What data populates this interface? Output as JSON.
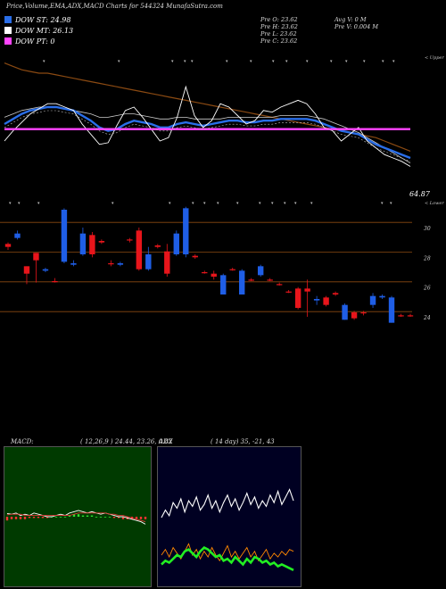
{
  "title": "Price,Volume,EMA,ADX,MACD Charts for 544324  MunafaSutra.com",
  "legend": [
    {
      "label": "DOW ST: 24.98",
      "color": "#2a6ee8"
    },
    {
      "label": "DOW MT: 26.13",
      "color": "#ffffff"
    },
    {
      "label": "DOW PT: 0",
      "color": "#ff44ff"
    }
  ],
  "stats": {
    "prev_open": "Pre   O: 23.62",
    "prev_high": "Pre   H: 23.62",
    "prev_low": "Pre   L: 23.62",
    "prev_close": "Pre   C: 23.62",
    "avg_vol": "Avg V: 0   M",
    "prev_vol": "Pre   V: 0.004   M"
  },
  "labels": {
    "upper": "< Upper",
    "lower": "< Lower",
    "last_value": "64.87"
  },
  "macd": {
    "label": "MACD:",
    "values": "( 12,26,9 ) 24.44,  23.26,  0.82"
  },
  "adx": {
    "label": "ADX",
    "values": "( 14  day) 35,  -21,  43"
  },
  "colors": {
    "up": "#e8151b",
    "down": "#1f5ee6",
    "ema": "#2a6ee8",
    "pt": "#ff44ff",
    "brown": "#8b4a12",
    "green": "#22ee22"
  },
  "chart_data": [
    {
      "type": "line",
      "name": "indicator-lines",
      "series": [
        {
          "values": [
            76,
            74,
            72,
            71,
            70,
            70,
            69,
            68,
            67,
            66,
            65,
            64,
            63,
            62,
            61,
            60,
            59,
            58,
            57,
            56,
            55,
            54,
            53,
            52,
            51,
            50,
            49,
            48,
            47,
            46,
            45,
            44,
            43,
            42,
            41,
            40,
            39,
            38,
            37,
            36,
            35,
            34,
            33,
            32,
            30,
            28,
            26,
            24
          ]
        },
        {
          "values": [
            44,
            46,
            48,
            49,
            50,
            50,
            50,
            49,
            48,
            47,
            46,
            44,
            44,
            45,
            46,
            46,
            45,
            44,
            43,
            43,
            44,
            44,
            43,
            43,
            43,
            43,
            44,
            44,
            44,
            44,
            44,
            44,
            45,
            45,
            45,
            45,
            44,
            43,
            41,
            39,
            37,
            35,
            32,
            29,
            26,
            23,
            20,
            17
          ]
        },
        {
          "values": [
            40,
            43,
            46,
            48,
            49,
            50,
            50,
            49,
            48,
            45,
            42,
            38,
            36,
            37,
            40,
            42,
            41,
            40,
            38,
            38,
            40,
            41,
            40,
            39,
            40,
            41,
            42,
            42,
            41,
            41,
            42,
            42,
            43,
            43,
            43,
            43,
            42,
            40,
            38,
            36,
            35,
            34,
            31,
            28,
            26,
            24,
            22,
            20
          ]
        },
        {
          "values": [
            30,
            36,
            41,
            46,
            49,
            52,
            52,
            50,
            48,
            40,
            34,
            28,
            29,
            39,
            48,
            50,
            44,
            37,
            30,
            32,
            44,
            62,
            45,
            38,
            42,
            52,
            50,
            45,
            40,
            42,
            48,
            47,
            50,
            52,
            54,
            52,
            46,
            38,
            36,
            30,
            34,
            38,
            30,
            26,
            22,
            20,
            18,
            15
          ]
        },
        {
          "values": [
            37,
            37,
            37,
            37,
            37,
            37,
            37,
            37,
            37,
            37,
            37,
            37,
            37,
            37,
            37,
            37,
            37,
            37,
            37,
            37,
            37,
            37,
            37,
            37,
            37,
            37,
            37,
            37,
            37,
            37,
            37,
            37,
            37,
            37,
            37,
            37,
            37,
            37,
            37,
            37,
            37,
            37,
            37,
            37,
            37,
            37,
            37,
            37
          ]
        }
      ]
    },
    {
      "type": "candlestick",
      "name": "price",
      "candles": [
        {
          "o": 28.7,
          "h": 29.0,
          "l": 28.5,
          "c": 28.9
        },
        {
          "o": 29.6,
          "h": 29.8,
          "l": 29.2,
          "c": 29.3
        },
        {
          "o": 26.9,
          "h": 27.4,
          "l": 26.2,
          "c": 27.4
        },
        {
          "o": 27.8,
          "h": 28.3,
          "l": 26.3,
          "c": 28.3
        },
        {
          "o": 27.2,
          "h": 27.3,
          "l": 27.0,
          "c": 27.1
        },
        {
          "o": 26.4,
          "h": 26.6,
          "l": 26.3,
          "c": 26.4
        },
        {
          "o": 31.2,
          "h": 31.3,
          "l": 27.6,
          "c": 27.7
        },
        {
          "o": 27.6,
          "h": 27.8,
          "l": 27.4,
          "c": 27.5
        },
        {
          "o": 29.6,
          "h": 30.0,
          "l": 28.1,
          "c": 28.2
        },
        {
          "o": 28.2,
          "h": 29.7,
          "l": 28.0,
          "c": 29.5
        },
        {
          "o": 29.0,
          "h": 29.2,
          "l": 28.9,
          "c": 29.1
        },
        {
          "o": 27.6,
          "h": 27.8,
          "l": 27.4,
          "c": 27.6
        },
        {
          "o": 27.6,
          "h": 27.7,
          "l": 27.4,
          "c": 27.5
        },
        {
          "o": 29.2,
          "h": 29.3,
          "l": 29.0,
          "c": 29.2
        },
        {
          "o": 27.2,
          "h": 30.0,
          "l": 27.1,
          "c": 29.8
        },
        {
          "o": 28.2,
          "h": 28.7,
          "l": 27.1,
          "c": 27.2
        },
        {
          "o": 28.7,
          "h": 28.9,
          "l": 28.6,
          "c": 28.8
        },
        {
          "o": 26.9,
          "h": 28.9,
          "l": 26.7,
          "c": 28.4
        },
        {
          "o": 29.6,
          "h": 29.8,
          "l": 28.1,
          "c": 28.2
        },
        {
          "o": 31.3,
          "h": 31.4,
          "l": 28.0,
          "c": 28.2
        },
        {
          "o": 28.0,
          "h": 28.2,
          "l": 27.9,
          "c": 28.1
        },
        {
          "o": 27.0,
          "h": 27.1,
          "l": 26.9,
          "c": 27.0
        },
        {
          "o": 26.7,
          "h": 27.1,
          "l": 26.5,
          "c": 26.9
        },
        {
          "o": 26.8,
          "h": 26.9,
          "l": 25.5,
          "c": 25.5
        },
        {
          "o": 27.2,
          "h": 27.3,
          "l": 27.1,
          "c": 27.2
        },
        {
          "o": 27.1,
          "h": 27.2,
          "l": 25.5,
          "c": 25.5
        },
        {
          "o": 26.5,
          "h": 26.6,
          "l": 26.4,
          "c": 26.5
        },
        {
          "o": 27.4,
          "h": 27.5,
          "l": 26.7,
          "c": 26.8
        },
        {
          "o": 26.5,
          "h": 26.6,
          "l": 26.4,
          "c": 26.5
        },
        {
          "o": 26.2,
          "h": 26.3,
          "l": 26.1,
          "c": 26.2
        },
        {
          "o": 25.7,
          "h": 25.8,
          "l": 25.6,
          "c": 25.7
        },
        {
          "o": 24.6,
          "h": 26.0,
          "l": 24.5,
          "c": 25.9
        },
        {
          "o": 25.7,
          "h": 26.5,
          "l": 24.0,
          "c": 25.9
        },
        {
          "o": 25.2,
          "h": 25.4,
          "l": 24.8,
          "c": 25.1
        },
        {
          "o": 24.8,
          "h": 25.4,
          "l": 24.7,
          "c": 25.3
        },
        {
          "o": 25.5,
          "h": 25.7,
          "l": 25.4,
          "c": 25.6
        },
        {
          "o": 24.8,
          "h": 24.9,
          "l": 23.8,
          "c": 23.8
        },
        {
          "o": 23.9,
          "h": 24.4,
          "l": 23.8,
          "c": 24.3
        },
        {
          "o": 24.3,
          "h": 24.4,
          "l": 24.1,
          "c": 24.3
        },
        {
          "o": 25.4,
          "h": 25.6,
          "l": 24.6,
          "c": 24.8
        },
        {
          "o": 25.4,
          "h": 25.5,
          "l": 25.2,
          "c": 25.3
        },
        {
          "o": 25.3,
          "h": 25.4,
          "l": 23.6,
          "c": 23.6
        },
        {
          "o": 24.1,
          "h": 24.2,
          "l": 24.0,
          "c": 24.1
        },
        {
          "o": 24.1,
          "h": 24.2,
          "l": 24.0,
          "c": 24.1
        }
      ],
      "y_ticks": [
        "30",
        "28",
        "26",
        "24"
      ],
      "ylim": [
        22.5,
        31.5
      ]
    },
    {
      "type": "line",
      "name": "macd",
      "series": [
        {
          "values": [
            0.25,
            0.2,
            0.3,
            0.1,
            0.2,
            0.1,
            0.3,
            0.2,
            0.1,
            0.0,
            0.0,
            0.1,
            0.2,
            0.1,
            0.3,
            0.4,
            0.5,
            0.4,
            0.3,
            0.4,
            0.3,
            0.2,
            0.3,
            0.2,
            0.1,
            0.0,
            0.0,
            -0.1,
            -0.2,
            -0.3,
            -0.4,
            -0.6
          ]
        },
        {
          "values": [
            0.15,
            0.2,
            0.2,
            0.2,
            0.1,
            0.1,
            0.1,
            0.1,
            0.1,
            0.1,
            0.1,
            0.1,
            0.1,
            0.1,
            0.1,
            0.2,
            0.3,
            0.3,
            0.3,
            0.3,
            0.3,
            0.3,
            0.3,
            0.2,
            0.2,
            0.1,
            0.1,
            0.0,
            -0.1,
            -0.2,
            -0.3,
            -0.4
          ]
        },
        {
          "values": [
            -0.3,
            -0.2,
            -0.2,
            -0.2,
            -0.2,
            -0.1,
            -0.1,
            -0.1,
            -0.1,
            -0.1,
            0.0,
            0.0,
            0.0,
            0.0,
            0.1,
            0.2,
            0.2,
            0.1,
            0.1,
            0.1,
            0.0,
            0.0,
            0.0,
            0.0,
            -0.1,
            -0.1,
            -0.2,
            -0.2,
            -0.2,
            -0.2,
            -0.2,
            -0.2
          ]
        }
      ]
    },
    {
      "type": "line",
      "name": "adx",
      "series": [
        {
          "values": [
            30,
            34,
            31,
            38,
            35,
            40,
            33,
            39,
            36,
            41,
            34,
            37,
            42,
            35,
            39,
            33,
            38,
            42,
            36,
            40,
            34,
            38,
            43,
            37,
            41,
            35,
            39,
            36,
            42,
            38,
            44,
            37,
            41,
            45,
            39
          ]
        },
        {
          "values": [
            10,
            13,
            9,
            14,
            11,
            8,
            12,
            16,
            10,
            13,
            8,
            12,
            9,
            14,
            10,
            7,
            11,
            15,
            9,
            12,
            8,
            11,
            14,
            9,
            12,
            7,
            10,
            13,
            8,
            11,
            9,
            12,
            10,
            13,
            12
          ]
        },
        {
          "values": [
            5,
            7,
            6,
            8,
            10,
            9,
            12,
            13,
            11,
            9,
            12,
            14,
            13,
            11,
            9,
            10,
            7,
            8,
            6,
            9,
            7,
            5,
            8,
            6,
            9,
            8,
            6,
            7,
            5,
            6,
            4,
            5,
            4,
            3,
            2
          ]
        }
      ]
    }
  ]
}
